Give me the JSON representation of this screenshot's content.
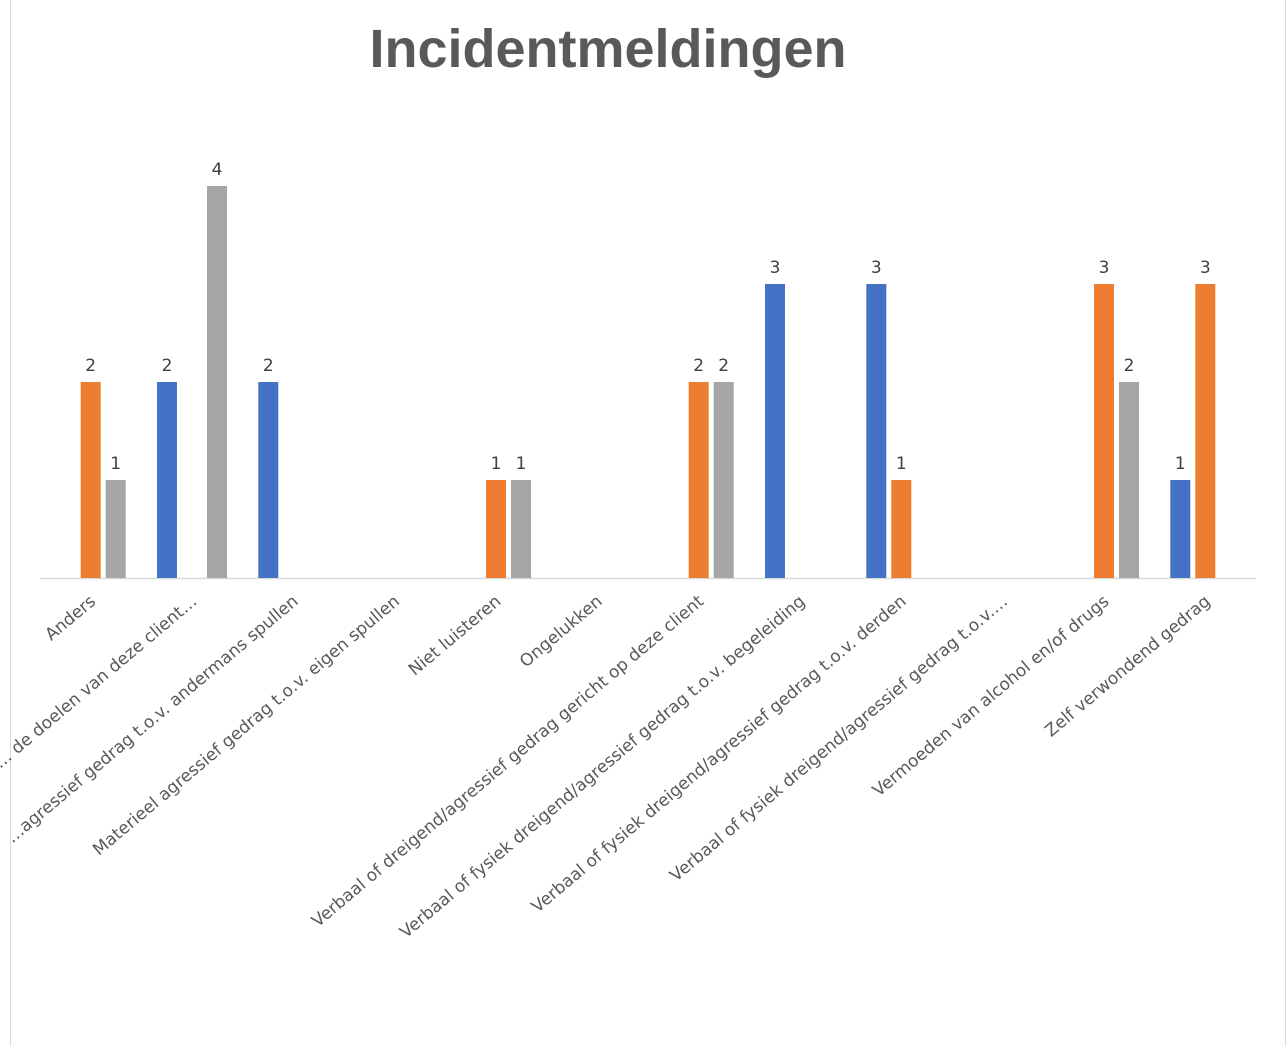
{
  "chart_data": {
    "type": "bar",
    "title": "Incidentmeldingen",
    "categories": [
      "Anders",
      "… de doelen van deze client…",
      "…agressief gedrag t.o.v. andermans spullen",
      "Materieel agressief gedrag t.o.v. eigen spullen",
      "Niet luisteren",
      "Ongelukken",
      "Verbaal of dreigend/agressief gedrag gericht op deze client",
      "Verbaal of fysiek dreigend/agressief gedrag t.o.v. begeleiding",
      "Verbaal of fysiek dreigend/agressief gedrag t.o.v. derden",
      "Verbaal of fysiek dreigend/agressief gedrag t.o.v.…",
      "Vermoeden van alcohol en/of drugs",
      "Zelf verwondend gedrag"
    ],
    "series": [
      {
        "color": "#4472C4",
        "values": [
          null,
          2,
          2,
          null,
          null,
          null,
          null,
          3,
          3,
          null,
          null,
          1
        ]
      },
      {
        "color": "#ED7D31",
        "values": [
          2,
          null,
          null,
          null,
          1,
          null,
          2,
          null,
          1,
          null,
          3,
          3
        ]
      },
      {
        "color": "#A5A5A5",
        "values": [
          1,
          4,
          null,
          null,
          1,
          null,
          2,
          null,
          null,
          null,
          2,
          null
        ]
      }
    ],
    "ylim": [
      0,
      4.1
    ],
    "grid": false,
    "legend": "none"
  }
}
